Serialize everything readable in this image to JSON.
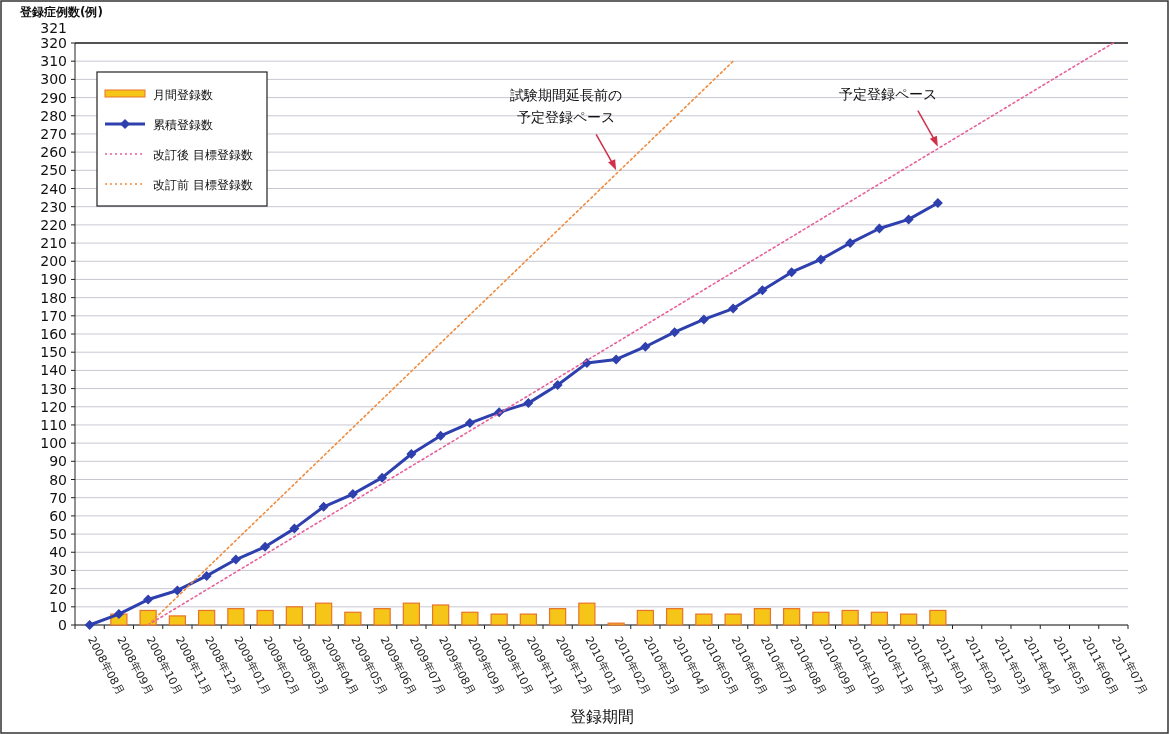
{
  "chart_data": {
    "type": "line",
    "xlabel": "登録期間",
    "ylabel": "登録症例数(例)",
    "categories": [
      "2008年08月",
      "2008年09月",
      "2008年10月",
      "2008年11月",
      "2008年12月",
      "2009年01月",
      "2009年02月",
      "2009年03月",
      "2009年04月",
      "2009年05月",
      "2009年06月",
      "2009年07月",
      "2009年08月",
      "2009年09月",
      "2009年10月",
      "2009年11月",
      "2009年12月",
      "2010年01月",
      "2010年02月",
      "2010年03月",
      "2010年04月",
      "2010年05月",
      "2010年06月",
      "2010年07月",
      "2010年08月",
      "2010年09月",
      "2010年10月",
      "2010年11月",
      "2010年12月",
      "2011年01月",
      "2011年02月",
      "2011年03月",
      "2011年04月",
      "2011年05月",
      "2011年06月",
      "2011年07月"
    ],
    "series": [
      {
        "name": "月間登録数",
        "type": "bar",
        "color": "#f5c518",
        "values": [
          0,
          6,
          8,
          5,
          8,
          9,
          8,
          10,
          12,
          7,
          9,
          12,
          11,
          7,
          6,
          6,
          9,
          12,
          1,
          8,
          9,
          6,
          6,
          9,
          9,
          7,
          8,
          7,
          6,
          8,
          null,
          null,
          null,
          null,
          null,
          null
        ]
      },
      {
        "name": "累積登録数",
        "color": "#2e3fae",
        "marker": "diamond",
        "line_style": "solid",
        "values": [
          0,
          6,
          14,
          19,
          27,
          36,
          43,
          53,
          65,
          72,
          81,
          94,
          104,
          111,
          117,
          122,
          132,
          144,
          146,
          153,
          161,
          168,
          174,
          184,
          194,
          201,
          210,
          218,
          223,
          232,
          null,
          null,
          null,
          null,
          null,
          null
        ]
      },
      {
        "name": "改訂後 目標登録数",
        "color": "#e8609a",
        "marker": "none",
        "line_style": "dotted",
        "values": [
          null,
          null,
          0,
          9.7,
          19.4,
          29.1,
          38.8,
          48.5,
          58.2,
          67.9,
          77.6,
          87.3,
          97,
          106.7,
          116.4,
          126.1,
          135.8,
          145.5,
          155.2,
          164.9,
          174.6,
          184.3,
          194,
          203.7,
          213.4,
          223.1,
          232.8,
          242.5,
          252.2,
          261.9,
          271.6,
          281.3,
          291,
          300.7,
          310.4,
          320
        ]
      },
      {
        "name": "改訂前 目標登録数",
        "color": "#f08a3c",
        "marker": "none",
        "line_style": "dotted",
        "values": [
          null,
          null,
          0,
          15.5,
          31,
          46.5,
          62,
          77.5,
          93,
          108.5,
          124,
          139.5,
          155,
          170.5,
          186,
          201.5,
          217,
          232.5,
          248,
          263.5,
          279,
          294.5,
          310,
          null,
          null,
          null,
          null,
          null,
          null,
          null,
          null,
          null,
          null,
          null,
          null,
          null
        ]
      }
    ],
    "ylim": [
      0,
      320
    ],
    "yticks": [
      0,
      10,
      20,
      30,
      40,
      50,
      60,
      70,
      80,
      90,
      100,
      110,
      120,
      130,
      140,
      150,
      160,
      170,
      180,
      190,
      200,
      210,
      220,
      230,
      240,
      250,
      260,
      270,
      280,
      290,
      300,
      310,
      320
    ],
    "grid": "y",
    "legend": "top left",
    "annotations": [
      "321",
      {
        "text": "試験期間延長前の予定登録ペース",
        "x": "2010年02月",
        "y": 250
      },
      {
        "text": "予定登録ペース",
        "x": "2011年01月",
        "y": 263
      }
    ]
  }
}
